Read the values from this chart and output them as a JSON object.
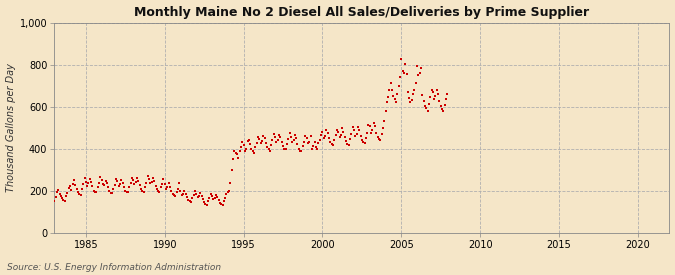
{
  "title": "Monthly Maine No 2 Diesel All Sales/Deliveries by Prime Supplier",
  "ylabel": "Thousand Gallons per Day",
  "source": "Source: U.S. Energy Information Administration",
  "bg_color": "#f5e6c8",
  "plot_bg": "#f5e6c8",
  "marker_color": "#cc0000",
  "marker_size": 3,
  "xlim": [
    1983.0,
    2022.0
  ],
  "ylim": [
    0,
    1000
  ],
  "yticks": [
    0,
    200,
    400,
    600,
    800,
    1000
  ],
  "xticks": [
    1985,
    1990,
    1995,
    2000,
    2005,
    2010,
    2015,
    2020
  ],
  "data": [
    [
      1983.0,
      155
    ],
    [
      1983.083,
      170
    ],
    [
      1983.167,
      195
    ],
    [
      1983.25,
      205
    ],
    [
      1983.333,
      185
    ],
    [
      1983.417,
      175
    ],
    [
      1983.5,
      165
    ],
    [
      1983.583,
      158
    ],
    [
      1983.667,
      155
    ],
    [
      1983.75,
      175
    ],
    [
      1983.833,
      192
    ],
    [
      1983.917,
      215
    ],
    [
      1984.0,
      225
    ],
    [
      1984.083,
      205
    ],
    [
      1984.167,
      235
    ],
    [
      1984.25,
      255
    ],
    [
      1984.333,
      228
    ],
    [
      1984.417,
      212
    ],
    [
      1984.5,
      195
    ],
    [
      1984.583,
      185
    ],
    [
      1984.667,
      182
    ],
    [
      1984.75,
      212
    ],
    [
      1984.833,
      232
    ],
    [
      1984.917,
      262
    ],
    [
      1985.0,
      245
    ],
    [
      1985.083,
      222
    ],
    [
      1985.167,
      238
    ],
    [
      1985.25,
      258
    ],
    [
      1985.333,
      242
    ],
    [
      1985.417,
      222
    ],
    [
      1985.5,
      202
    ],
    [
      1985.583,
      198
    ],
    [
      1985.667,
      198
    ],
    [
      1985.75,
      218
    ],
    [
      1985.833,
      238
    ],
    [
      1985.917,
      268
    ],
    [
      1986.0,
      252
    ],
    [
      1986.083,
      232
    ],
    [
      1986.167,
      228
    ],
    [
      1986.25,
      248
    ],
    [
      1986.333,
      238
    ],
    [
      1986.417,
      218
    ],
    [
      1986.5,
      202
    ],
    [
      1986.583,
      192
    ],
    [
      1986.667,
      192
    ],
    [
      1986.75,
      212
    ],
    [
      1986.833,
      228
    ],
    [
      1986.917,
      258
    ],
    [
      1987.0,
      248
    ],
    [
      1987.083,
      222
    ],
    [
      1987.167,
      232
    ],
    [
      1987.25,
      252
    ],
    [
      1987.333,
      238
    ],
    [
      1987.417,
      218
    ],
    [
      1987.5,
      202
    ],
    [
      1987.583,
      198
    ],
    [
      1987.667,
      198
    ],
    [
      1987.75,
      218
    ],
    [
      1987.833,
      238
    ],
    [
      1987.917,
      262
    ],
    [
      1988.0,
      252
    ],
    [
      1988.083,
      232
    ],
    [
      1988.167,
      242
    ],
    [
      1988.25,
      262
    ],
    [
      1988.333,
      248
    ],
    [
      1988.417,
      228
    ],
    [
      1988.5,
      208
    ],
    [
      1988.583,
      202
    ],
    [
      1988.667,
      198
    ],
    [
      1988.75,
      218
    ],
    [
      1988.833,
      238
    ],
    [
      1988.917,
      272
    ],
    [
      1989.0,
      258
    ],
    [
      1989.083,
      238
    ],
    [
      1989.167,
      242
    ],
    [
      1989.25,
      262
    ],
    [
      1989.333,
      248
    ],
    [
      1989.417,
      222
    ],
    [
      1989.5,
      208
    ],
    [
      1989.583,
      202
    ],
    [
      1989.667,
      198
    ],
    [
      1989.75,
      218
    ],
    [
      1989.833,
      232
    ],
    [
      1989.917,
      258
    ],
    [
      1990.0,
      232
    ],
    [
      1990.083,
      212
    ],
    [
      1990.167,
      218
    ],
    [
      1990.25,
      238
    ],
    [
      1990.333,
      218
    ],
    [
      1990.417,
      202
    ],
    [
      1990.5,
      188
    ],
    [
      1990.583,
      182
    ],
    [
      1990.667,
      178
    ],
    [
      1990.75,
      198
    ],
    [
      1990.833,
      212
    ],
    [
      1990.917,
      238
    ],
    [
      1991.0,
      202
    ],
    [
      1991.083,
      182
    ],
    [
      1991.167,
      188
    ],
    [
      1991.25,
      202
    ],
    [
      1991.333,
      188
    ],
    [
      1991.417,
      172
    ],
    [
      1991.5,
      158
    ],
    [
      1991.583,
      152
    ],
    [
      1991.667,
      148
    ],
    [
      1991.75,
      168
    ],
    [
      1991.833,
      182
    ],
    [
      1991.917,
      202
    ],
    [
      1992.0,
      188
    ],
    [
      1992.083,
      172
    ],
    [
      1992.167,
      178
    ],
    [
      1992.25,
      192
    ],
    [
      1992.333,
      178
    ],
    [
      1992.417,
      162
    ],
    [
      1992.5,
      148
    ],
    [
      1992.583,
      138
    ],
    [
      1992.667,
      132
    ],
    [
      1992.75,
      152
    ],
    [
      1992.833,
      168
    ],
    [
      1992.917,
      188
    ],
    [
      1993.0,
      178
    ],
    [
      1993.083,
      162
    ],
    [
      1993.167,
      168
    ],
    [
      1993.25,
      182
    ],
    [
      1993.333,
      172
    ],
    [
      1993.417,
      158
    ],
    [
      1993.5,
      142
    ],
    [
      1993.583,
      138
    ],
    [
      1993.667,
      132
    ],
    [
      1993.75,
      152
    ],
    [
      1993.833,
      168
    ],
    [
      1993.917,
      188
    ],
    [
      1994.0,
      198
    ],
    [
      1994.083,
      202
    ],
    [
      1994.167,
      238
    ],
    [
      1994.25,
      298
    ],
    [
      1994.333,
      352
    ],
    [
      1994.417,
      392
    ],
    [
      1994.5,
      382
    ],
    [
      1994.583,
      378
    ],
    [
      1994.667,
      358
    ],
    [
      1994.75,
      388
    ],
    [
      1994.833,
      408
    ],
    [
      1994.917,
      432
    ],
    [
      1995.0,
      418
    ],
    [
      1995.083,
      392
    ],
    [
      1995.167,
      402
    ],
    [
      1995.25,
      438
    ],
    [
      1995.333,
      442
    ],
    [
      1995.417,
      422
    ],
    [
      1995.5,
      402
    ],
    [
      1995.583,
      392
    ],
    [
      1995.667,
      382
    ],
    [
      1995.75,
      408
    ],
    [
      1995.833,
      428
    ],
    [
      1995.917,
      458
    ],
    [
      1996.0,
      448
    ],
    [
      1996.083,
      428
    ],
    [
      1996.167,
      438
    ],
    [
      1996.25,
      462
    ],
    [
      1996.333,
      452
    ],
    [
      1996.417,
      428
    ],
    [
      1996.5,
      408
    ],
    [
      1996.583,
      398
    ],
    [
      1996.667,
      392
    ],
    [
      1996.75,
      418
    ],
    [
      1996.833,
      442
    ],
    [
      1996.917,
      472
    ],
    [
      1997.0,
      458
    ],
    [
      1997.083,
      432
    ],
    [
      1997.167,
      442
    ],
    [
      1997.25,
      468
    ],
    [
      1997.333,
      458
    ],
    [
      1997.417,
      432
    ],
    [
      1997.5,
      412
    ],
    [
      1997.583,
      402
    ],
    [
      1997.667,
      398
    ],
    [
      1997.75,
      422
    ],
    [
      1997.833,
      448
    ],
    [
      1997.917,
      478
    ],
    [
      1998.0,
      458
    ],
    [
      1998.083,
      432
    ],
    [
      1998.167,
      442
    ],
    [
      1998.25,
      468
    ],
    [
      1998.333,
      452
    ],
    [
      1998.417,
      422
    ],
    [
      1998.5,
      402
    ],
    [
      1998.583,
      392
    ],
    [
      1998.667,
      388
    ],
    [
      1998.75,
      412
    ],
    [
      1998.833,
      432
    ],
    [
      1998.917,
      462
    ],
    [
      1999.0,
      452
    ],
    [
      1999.083,
      428
    ],
    [
      1999.167,
      432
    ],
    [
      1999.25,
      462
    ],
    [
      1999.333,
      398
    ],
    [
      1999.417,
      412
    ],
    [
      1999.5,
      432
    ],
    [
      1999.583,
      408
    ],
    [
      1999.667,
      402
    ],
    [
      1999.75,
      428
    ],
    [
      1999.833,
      442
    ],
    [
      1999.917,
      468
    ],
    [
      2000.0,
      482
    ],
    [
      2000.083,
      452
    ],
    [
      2000.167,
      462
    ],
    [
      2000.25,
      492
    ],
    [
      2000.333,
      478
    ],
    [
      2000.417,
      452
    ],
    [
      2000.5,
      432
    ],
    [
      2000.583,
      422
    ],
    [
      2000.667,
      418
    ],
    [
      2000.75,
      442
    ],
    [
      2000.833,
      468
    ],
    [
      2000.917,
      492
    ],
    [
      2001.0,
      482
    ],
    [
      2001.083,
      458
    ],
    [
      2001.167,
      468
    ],
    [
      2001.25,
      498
    ],
    [
      2001.333,
      482
    ],
    [
      2001.417,
      458
    ],
    [
      2001.5,
      438
    ],
    [
      2001.583,
      422
    ],
    [
      2001.667,
      418
    ],
    [
      2001.75,
      448
    ],
    [
      2001.833,
      472
    ],
    [
      2001.917,
      502
    ],
    [
      2002.0,
      492
    ],
    [
      2002.083,
      462
    ],
    [
      2002.167,
      472
    ],
    [
      2002.25,
      502
    ],
    [
      2002.333,
      488
    ],
    [
      2002.417,
      462
    ],
    [
      2002.5,
      442
    ],
    [
      2002.583,
      432
    ],
    [
      2002.667,
      428
    ],
    [
      2002.75,
      452
    ],
    [
      2002.833,
      478
    ],
    [
      2002.917,
      512
    ],
    [
      2003.0,
      508
    ],
    [
      2003.083,
      478
    ],
    [
      2003.167,
      492
    ],
    [
      2003.25,
      522
    ],
    [
      2003.333,
      508
    ],
    [
      2003.417,
      478
    ],
    [
      2003.5,
      458
    ],
    [
      2003.583,
      448
    ],
    [
      2003.667,
      442
    ],
    [
      2003.75,
      472
    ],
    [
      2003.833,
      498
    ],
    [
      2003.917,
      532
    ],
    [
      2004.0,
      582
    ],
    [
      2004.083,
      622
    ],
    [
      2004.167,
      648
    ],
    [
      2004.25,
      682
    ],
    [
      2004.333,
      712
    ],
    [
      2004.417,
      682
    ],
    [
      2004.5,
      652
    ],
    [
      2004.583,
      638
    ],
    [
      2004.667,
      622
    ],
    [
      2004.75,
      662
    ],
    [
      2004.833,
      698
    ],
    [
      2004.917,
      742
    ],
    [
      2005.0,
      828
    ],
    [
      2005.083,
      772
    ],
    [
      2005.167,
      762
    ],
    [
      2005.25,
      802
    ],
    [
      2005.333,
      758
    ],
    [
      2005.417,
      672
    ],
    [
      2005.5,
      642
    ],
    [
      2005.583,
      622
    ],
    [
      2005.667,
      632
    ],
    [
      2005.75,
      662
    ],
    [
      2005.833,
      682
    ],
    [
      2005.917,
      712
    ],
    [
      2006.0,
      792
    ],
    [
      2006.083,
      752
    ],
    [
      2006.167,
      762
    ],
    [
      2006.25,
      782
    ],
    [
      2006.333,
      658
    ],
    [
      2006.417,
      628
    ],
    [
      2006.5,
      602
    ],
    [
      2006.583,
      592
    ],
    [
      2006.667,
      582
    ],
    [
      2006.75,
      612
    ],
    [
      2006.833,
      648
    ],
    [
      2006.917,
      678
    ],
    [
      2007.0,
      668
    ],
    [
      2007.083,
      638
    ],
    [
      2007.167,
      652
    ],
    [
      2007.25,
      682
    ],
    [
      2007.333,
      662
    ],
    [
      2007.417,
      628
    ],
    [
      2007.5,
      602
    ],
    [
      2007.583,
      588
    ],
    [
      2007.667,
      578
    ],
    [
      2007.75,
      608
    ],
    [
      2007.833,
      638
    ],
    [
      2007.917,
      662
    ]
  ]
}
